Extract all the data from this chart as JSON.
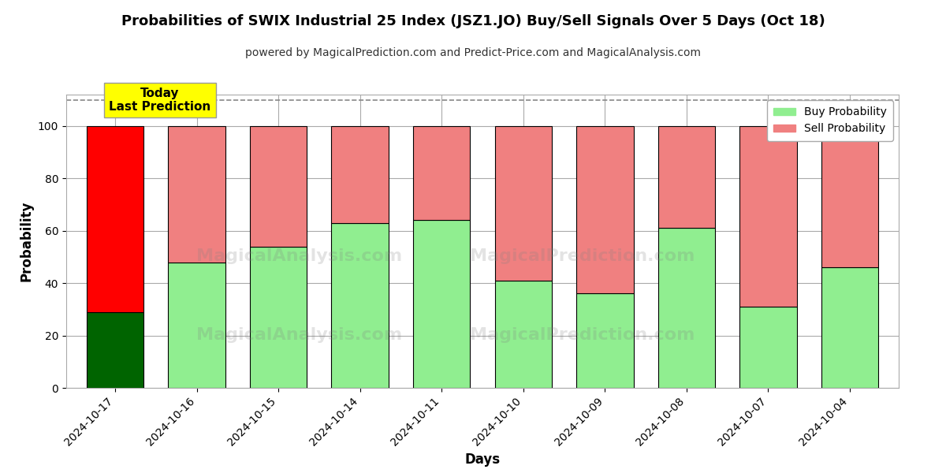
{
  "title": "Probabilities of SWIX Industrial 25 Index (JSZ1.JO) Buy/Sell Signals Over 5 Days (Oct 18)",
  "subtitle": "powered by MagicalPrediction.com and Predict-Price.com and MagicalAnalysis.com",
  "xlabel": "Days",
  "ylabel": "Probability",
  "categories": [
    "2024-10-17",
    "2024-10-16",
    "2024-10-15",
    "2024-10-14",
    "2024-10-11",
    "2024-10-10",
    "2024-10-09",
    "2024-10-08",
    "2024-10-07",
    "2024-10-04"
  ],
  "buy_values": [
    29,
    48,
    54,
    63,
    64,
    41,
    36,
    61,
    31,
    46
  ],
  "sell_values": [
    71,
    52,
    46,
    37,
    36,
    59,
    64,
    39,
    69,
    54
  ],
  "today_buy_color": "#006400",
  "today_sell_color": "#FF0000",
  "buy_color": "#90EE90",
  "sell_color": "#F08080",
  "today_label_bg": "#FFFF00",
  "today_label_text": "Today\nLast Prediction",
  "ylim": [
    0,
    112
  ],
  "yticks": [
    0,
    20,
    40,
    60,
    80,
    100
  ],
  "dashed_line_y": 110,
  "legend_buy": "Buy Probability",
  "legend_sell": "Sell Probability",
  "bar_width": 0.7,
  "edgecolor": "#000000",
  "background_color": "#FFFFFF",
  "grid_color": "#AAAAAA"
}
